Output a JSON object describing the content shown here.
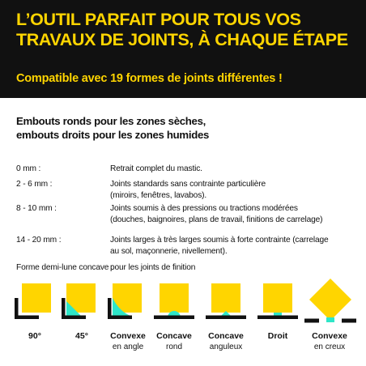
{
  "banner": {
    "title_line1": "L’OUTIL PARFAIT POUR TOUS VOS",
    "title_line2": "TRAVAUX DE JOINTS, À CHAQUE ÉTAPE",
    "subtitle": "Compatible avec 19 formes de joints différentes !"
  },
  "section": {
    "title_line1": "Embouts ronds pour les zones sèches,",
    "title_line2": "embouts droits pour les zones humides"
  },
  "rows": [
    {
      "key": "0 mm :",
      "value": "Retrait complet du mastic."
    },
    {
      "key": "2 - 6 mm :",
      "value": "Joints standards sans contrainte particulière",
      "value2": "(miroirs, fenêtres, lavabos)."
    },
    {
      "key": "8 - 10 mm :",
      "value": "Joints soumis à des pressions ou tractions modérées",
      "value2": "(douches, baignoires, plans de travail, finitions de carrelage)"
    },
    {
      "key": "14 - 20 mm :",
      "value": "Joints larges à très larges soumis à forte contrainte (carrelage",
      "value2": "au sol, maçonnerie, nivellement)."
    },
    {
      "key": "Forme demi-lune concave :",
      "value": "pour les joints de finition"
    }
  ],
  "shapes": [
    {
      "name": "90°",
      "sub": ""
    },
    {
      "name": "45°",
      "sub": ""
    },
    {
      "name": "Convexe",
      "sub": "en angle"
    },
    {
      "name": "Concave",
      "sub": "rond"
    },
    {
      "name": "Concave",
      "sub": "anguleux"
    },
    {
      "name": "Droit",
      "sub": ""
    },
    {
      "name": "Convexe",
      "sub": "en creux"
    }
  ],
  "colors": {
    "yellow": "#FFD500",
    "black": "#111111",
    "teal": "#2EE6C8"
  }
}
